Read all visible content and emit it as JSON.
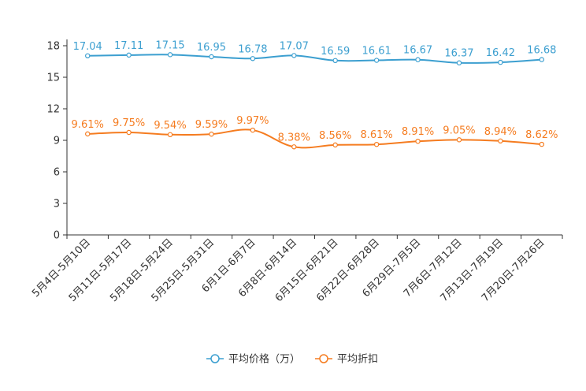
{
  "chart_data": {
    "type": "line",
    "title": "",
    "xlabel": "",
    "ylabel": "",
    "ylim": [
      0,
      18
    ],
    "yticks": [
      0,
      3,
      6,
      9,
      12,
      15,
      18
    ],
    "categories": [
      "5月4日-5月10日",
      "5月11日-5月17日",
      "5月18日-5月24日",
      "5月25日-5月31日",
      "6月1日-6月7日",
      "6月8日-6月14日",
      "6月15日-6月21日",
      "6月22日-6月28日",
      "6月29日-7月5日",
      "7月6日-7月12日",
      "7月13日-7月19日",
      "7月20日-7月26日"
    ],
    "series": [
      {
        "name": "平均价格（万）",
        "color": "#3c9fd0",
        "values": [
          17.04,
          17.11,
          17.15,
          16.95,
          16.78,
          17.07,
          16.59,
          16.61,
          16.67,
          16.37,
          16.42,
          16.68
        ],
        "labels": [
          "17.04",
          "17.11",
          "17.15",
          "16.95",
          "16.78",
          "17.07",
          "16.59",
          "16.61",
          "16.67",
          "16.37",
          "16.42",
          "16.68"
        ]
      },
      {
        "name": "平均折扣",
        "color": "#f57c20",
        "values": [
          9.61,
          9.75,
          9.54,
          9.59,
          9.97,
          8.38,
          8.56,
          8.61,
          8.91,
          9.05,
          8.94,
          8.62
        ],
        "labels": [
          "9.61%",
          "9.75%",
          "9.54%",
          "9.59%",
          "9.97%",
          "8.38%",
          "8.56%",
          "8.61%",
          "8.91%",
          "9.05%",
          "8.94%",
          "8.62%"
        ]
      }
    ],
    "grid": false,
    "legend_position": "bottom-center"
  }
}
